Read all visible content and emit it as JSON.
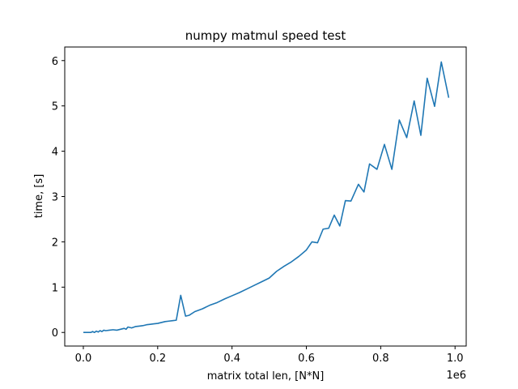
{
  "chart_data": {
    "type": "line",
    "title": "numpy matmul speed test",
    "xlabel": "matrix total len, [N*N]",
    "ylabel": "time, [s]",
    "x_offset_label": "1e6",
    "xlim": [
      -50000,
      1030000
    ],
    "ylim": [
      -0.3,
      6.3
    ],
    "x_ticks": [
      0,
      200000,
      400000,
      600000,
      800000,
      1000000
    ],
    "x_tick_labels": [
      "0.0",
      "0.2",
      "0.4",
      "0.6",
      "0.8",
      "1.0"
    ],
    "y_ticks": [
      0,
      1,
      2,
      3,
      4,
      5,
      6
    ],
    "y_tick_labels": [
      "0",
      "1",
      "2",
      "3",
      "4",
      "5",
      "6"
    ],
    "grid": false,
    "color": "#1f77b4",
    "series": [
      {
        "x": [
          0,
          10000,
          20000,
          25000,
          30000,
          35000,
          40000,
          45000,
          50000,
          55000,
          60000,
          70000,
          80000,
          90000,
          100000,
          110000,
          115000,
          120000,
          130000,
          140000,
          150000,
          160000,
          170000,
          180000,
          190000,
          200000,
          210000,
          220000,
          230000,
          240000,
          250000,
          262000,
          275000,
          285000,
          300000,
          320000,
          340000,
          360000,
          380000,
          400000,
          420000,
          440000,
          460000,
          480000,
          500000,
          520000,
          540000,
          560000,
          580000,
          600000,
          615000,
          630000,
          645000,
          660000,
          675000,
          690000,
          705000,
          720000,
          740000,
          755000,
          770000,
          790000,
          810000,
          830000,
          850000,
          870000,
          890000,
          908000,
          925000,
          945000,
          963000,
          983000
        ],
        "y": [
          0.0,
          0.0,
          0.0,
          0.02,
          0.0,
          0.03,
          0.01,
          0.04,
          0.02,
          0.05,
          0.04,
          0.05,
          0.06,
          0.05,
          0.07,
          0.09,
          0.07,
          0.12,
          0.1,
          0.13,
          0.14,
          0.15,
          0.17,
          0.18,
          0.19,
          0.2,
          0.22,
          0.24,
          0.25,
          0.26,
          0.27,
          0.82,
          0.36,
          0.38,
          0.46,
          0.52,
          0.6,
          0.66,
          0.74,
          0.81,
          0.88,
          0.96,
          1.04,
          1.12,
          1.2,
          1.35,
          1.46,
          1.56,
          1.68,
          1.82,
          2.0,
          1.98,
          2.28,
          2.3,
          2.59,
          2.35,
          2.91,
          2.9,
          3.27,
          3.1,
          3.72,
          3.6,
          4.15,
          3.6,
          4.69,
          4.3,
          5.11,
          4.35,
          5.61,
          4.99,
          5.97,
          5.18
        ]
      }
    ]
  }
}
